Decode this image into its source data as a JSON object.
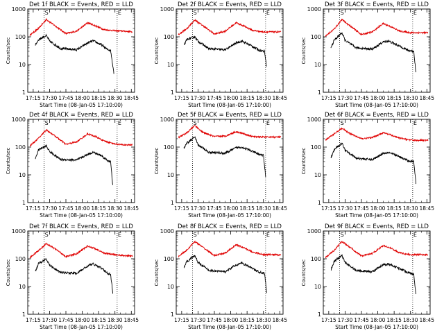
{
  "figure": {
    "xlabel": "Start Time (08-Jan-05 17:10:00)",
    "ylabel": "Counts/sec",
    "x_tick_labels": [
      "17:15",
      "17:30",
      "17:45",
      "18:00",
      "18:15",
      "18:30",
      "18:45"
    ],
    "y_tick_labels": [
      "1",
      "10",
      "100",
      "1000"
    ],
    "colors": {
      "events": "#000000",
      "lld": "#e00000"
    },
    "markers": {
      "start_label": "S",
      "end_label": "E"
    }
  },
  "chart_data": [
    {
      "type": "line",
      "title": "Det 1f BLACK = Events, RED = LLD",
      "yscale": "log",
      "ylim": [
        1,
        1000
      ],
      "xlim": [
        "17:10",
        "18:48"
      ],
      "vlines": [
        "17:25",
        "18:32"
      ],
      "series": [
        {
          "role": "lld",
          "x": [
            "17:12",
            "17:20",
            "17:27",
            "17:35",
            "17:45",
            "17:55",
            "18:05",
            "18:12",
            "18:20",
            "18:30",
            "18:38",
            "18:46"
          ],
          "values": [
            115,
            200,
            420,
            250,
            130,
            160,
            320,
            250,
            180,
            165,
            160,
            150
          ]
        },
        {
          "role": "events",
          "x": [
            "17:17",
            "17:20",
            "17:27",
            "17:30",
            "17:40",
            "17:55",
            "18:05",
            "18:10",
            "18:18",
            "18:23",
            "18:26",
            "18:29"
          ],
          "values": [
            50,
            80,
            110,
            70,
            38,
            34,
            60,
            72,
            50,
            35,
            32,
            5
          ]
        }
      ]
    },
    {
      "type": "line",
      "title": "Det 2f BLACK = Events, RED = LLD",
      "yscale": "log",
      "ylim": [
        1,
        1000
      ],
      "xlim": [
        "17:10",
        "18:48"
      ],
      "vlines": [
        "17:25",
        "18:32"
      ],
      "series": [
        {
          "role": "lld",
          "x": [
            "17:12",
            "17:20",
            "17:27",
            "17:35",
            "17:45",
            "17:55",
            "18:05",
            "18:12",
            "18:20",
            "18:30",
            "18:38",
            "18:46"
          ],
          "values": [
            120,
            200,
            400,
            245,
            125,
            160,
            320,
            245,
            170,
            150,
            150,
            150
          ]
        },
        {
          "role": "events",
          "x": [
            "17:17",
            "17:20",
            "17:27",
            "17:30",
            "17:40",
            "17:55",
            "18:05",
            "18:10",
            "18:18",
            "18:26",
            "18:31",
            "18:33"
          ],
          "values": [
            50,
            80,
            100,
            70,
            37,
            34,
            60,
            70,
            50,
            33,
            30,
            8
          ]
        }
      ]
    },
    {
      "type": "line",
      "title": "Det 3f BLACK = Events, RED = LLD",
      "yscale": "log",
      "ylim": [
        1,
        1000
      ],
      "xlim": [
        "17:10",
        "18:48"
      ],
      "vlines": [
        "17:25",
        "18:32"
      ],
      "series": [
        {
          "role": "lld",
          "x": [
            "17:12",
            "17:20",
            "17:27",
            "17:35",
            "17:45",
            "17:55",
            "18:05",
            "18:12",
            "18:20",
            "18:30",
            "18:38",
            "18:46"
          ],
          "values": [
            105,
            190,
            420,
            240,
            120,
            150,
            300,
            230,
            160,
            140,
            140,
            140
          ]
        },
        {
          "role": "events",
          "x": [
            "17:17",
            "17:20",
            "17:27",
            "17:30",
            "17:40",
            "17:55",
            "18:05",
            "18:10",
            "18:18",
            "18:28",
            "18:33",
            "18:35"
          ],
          "values": [
            40,
            75,
            140,
            75,
            40,
            36,
            65,
            70,
            50,
            32,
            30,
            5
          ]
        }
      ]
    },
    {
      "type": "line",
      "title": "Det 4f BLACK = Events, RED = LLD",
      "yscale": "log",
      "ylim": [
        1,
        1000
      ],
      "xlim": [
        "17:10",
        "18:48"
      ],
      "vlines": [
        "17:25",
        "18:32"
      ],
      "series": [
        {
          "role": "lld",
          "x": [
            "17:12",
            "17:20",
            "17:27",
            "17:35",
            "17:45",
            "17:55",
            "18:05",
            "18:12",
            "18:20",
            "18:30",
            "18:38",
            "18:46"
          ],
          "values": [
            110,
            210,
            420,
            250,
            125,
            155,
            300,
            240,
            165,
            130,
            120,
            120
          ]
        },
        {
          "role": "events",
          "x": [
            "17:17",
            "17:20",
            "17:27",
            "17:30",
            "17:40",
            "17:55",
            "18:05",
            "18:10",
            "18:18",
            "18:23",
            "18:26",
            "18:28"
          ],
          "values": [
            40,
            80,
            110,
            70,
            36,
            34,
            55,
            65,
            48,
            33,
            30,
            4
          ]
        }
      ]
    },
    {
      "type": "line",
      "title": "Det 5f BLACK = Events, RED = LLD",
      "yscale": "log",
      "ylim": [
        1,
        1000
      ],
      "xlim": [
        "17:10",
        "18:48"
      ],
      "vlines": [
        "17:25",
        "18:32"
      ],
      "series": [
        {
          "role": "lld",
          "x": [
            "17:12",
            "17:20",
            "17:27",
            "17:35",
            "17:45",
            "17:55",
            "18:05",
            "18:12",
            "18:20",
            "18:30",
            "18:38",
            "18:46"
          ],
          "values": [
            220,
            330,
            600,
            330,
            240,
            250,
            360,
            300,
            240,
            230,
            230,
            230
          ]
        },
        {
          "role": "events",
          "x": [
            "17:17",
            "17:20",
            "17:27",
            "17:30",
            "17:40",
            "17:55",
            "18:05",
            "18:10",
            "18:18",
            "18:26",
            "18:30",
            "18:32"
          ],
          "values": [
            90,
            140,
            230,
            120,
            65,
            60,
            95,
            100,
            75,
            55,
            50,
            9
          ]
        }
      ]
    },
    {
      "type": "line",
      "title": "Det 6f BLACK = Events, RED = LLD",
      "yscale": "log",
      "ylim": [
        1,
        1000
      ],
      "xlim": [
        "17:10",
        "18:48"
      ],
      "vlines": [
        "17:25",
        "18:32"
      ],
      "series": [
        {
          "role": "lld",
          "x": [
            "17:12",
            "17:20",
            "17:27",
            "17:35",
            "17:45",
            "17:55",
            "18:05",
            "18:12",
            "18:20",
            "18:30",
            "18:38",
            "18:46"
          ],
          "values": [
            180,
            300,
            470,
            300,
            200,
            220,
            330,
            270,
            210,
            180,
            175,
            175
          ]
        },
        {
          "role": "events",
          "x": [
            "17:17",
            "17:20",
            "17:27",
            "17:30",
            "17:40",
            "17:55",
            "18:05",
            "18:10",
            "18:18",
            "18:28",
            "18:33",
            "18:35"
          ],
          "values": [
            40,
            80,
            140,
            80,
            40,
            35,
            60,
            65,
            48,
            32,
            30,
            5
          ]
        }
      ]
    },
    {
      "type": "line",
      "title": "Det 7f BLACK = Events, RED = LLD",
      "yscale": "log",
      "ylim": [
        1,
        1000
      ],
      "xlim": [
        "17:10",
        "18:48"
      ],
      "vlines": [
        "17:25",
        "18:32"
      ],
      "series": [
        {
          "role": "lld",
          "x": [
            "17:12",
            "17:20",
            "17:27",
            "17:35",
            "17:45",
            "17:55",
            "18:05",
            "18:12",
            "18:20",
            "18:30",
            "18:38",
            "18:46"
          ],
          "values": [
            110,
            200,
            350,
            230,
            120,
            150,
            290,
            230,
            160,
            140,
            130,
            125
          ]
        },
        {
          "role": "events",
          "x": [
            "17:17",
            "17:20",
            "17:27",
            "17:30",
            "17:40",
            "17:55",
            "18:05",
            "18:10",
            "18:18",
            "18:23",
            "18:26",
            "18:28"
          ],
          "values": [
            35,
            70,
            95,
            60,
            32,
            30,
            55,
            65,
            45,
            30,
            28,
            6
          ]
        }
      ]
    },
    {
      "type": "line",
      "title": "Det 8f BLACK = Events, RED = LLD",
      "yscale": "log",
      "ylim": [
        1,
        1000
      ],
      "xlim": [
        "17:10",
        "18:48"
      ],
      "vlines": [
        "17:25",
        "18:32"
      ],
      "series": [
        {
          "role": "lld",
          "x": [
            "17:12",
            "17:20",
            "17:27",
            "17:35",
            "17:45",
            "17:55",
            "18:05",
            "18:12",
            "18:20",
            "18:30",
            "18:38",
            "18:46"
          ],
          "values": [
            120,
            210,
            420,
            250,
            130,
            160,
            320,
            250,
            175,
            140,
            140,
            140
          ]
        },
        {
          "role": "events",
          "x": [
            "17:17",
            "17:20",
            "17:27",
            "17:30",
            "17:40",
            "17:55",
            "18:05",
            "18:10",
            "18:18",
            "18:26",
            "18:31",
            "18:33"
          ],
          "values": [
            50,
            80,
            130,
            75,
            38,
            34,
            60,
            70,
            50,
            33,
            30,
            6
          ]
        }
      ]
    },
    {
      "type": "line",
      "title": "Det 9f BLACK = Events, RED = LLD",
      "yscale": "log",
      "ylim": [
        1,
        1000
      ],
      "xlim": [
        "17:10",
        "18:48"
      ],
      "vlines": [
        "17:25",
        "18:32"
      ],
      "series": [
        {
          "role": "lld",
          "x": [
            "17:12",
            "17:20",
            "17:27",
            "17:35",
            "17:45",
            "17:55",
            "18:05",
            "18:12",
            "18:20",
            "18:30",
            "18:38",
            "18:46"
          ],
          "values": [
            110,
            200,
            420,
            250,
            125,
            155,
            300,
            240,
            165,
            140,
            140,
            140
          ]
        },
        {
          "role": "events",
          "x": [
            "17:17",
            "17:20",
            "17:27",
            "17:30",
            "17:40",
            "17:55",
            "18:05",
            "18:10",
            "18:18",
            "18:28",
            "18:33",
            "18:35"
          ],
          "values": [
            40,
            80,
            130,
            75,
            38,
            34,
            60,
            65,
            48,
            32,
            28,
            5
          ]
        }
      ]
    }
  ]
}
